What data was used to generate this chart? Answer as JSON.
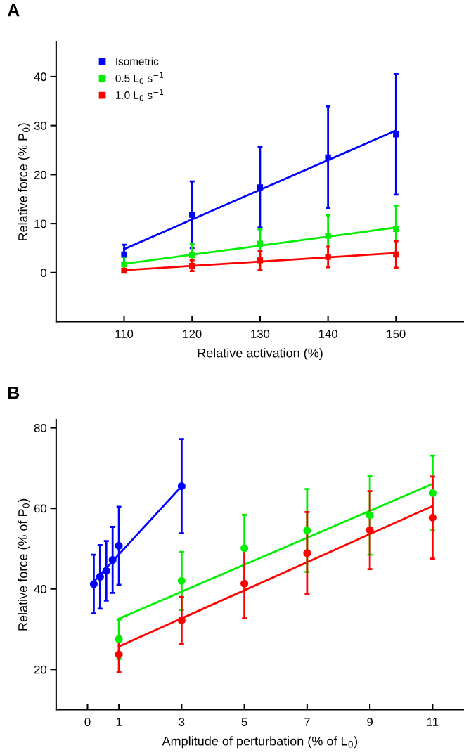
{
  "chart_data": [
    {
      "type": "scatter",
      "title": "A",
      "xlabel": "Relative activation (%)",
      "ylabel": "Relative force (% P$_{0}$)",
      "xlim": [
        100,
        160
      ],
      "ylim": [
        -10,
        47
      ],
      "xticks": [
        110,
        120,
        130,
        140,
        150
      ],
      "yticks": [
        0,
        10,
        20,
        30,
        40
      ],
      "legend": "top left",
      "marker": "square",
      "series": [
        {
          "name": "Isometric",
          "color": "#0000ff",
          "x": [
            110,
            120,
            130,
            140,
            150
          ],
          "values": [
            3.7,
            11.8,
            17.4,
            23.5,
            28.2
          ],
          "errors": [
            2.0,
            6.8,
            8.2,
            10.4,
            12.3
          ]
        },
        {
          "name": "0.5 L$_{0}$ s$^{−1}$",
          "color": "#00ee00",
          "x": [
            110,
            120,
            130,
            140,
            150
          ],
          "values": [
            1.7,
            3.6,
            5.9,
            7.5,
            8.9
          ],
          "errors": [
            1.5,
            2.2,
            2.9,
            4.2,
            4.8
          ]
        },
        {
          "name": "1.0 L$_{0}$ s$^{−1}$",
          "color": "#ff0000",
          "x": [
            110,
            120,
            130,
            140,
            150
          ],
          "values": [
            0.4,
            1.4,
            2.5,
            3.2,
            3.7
          ],
          "errors": [
            0.3,
            1.1,
            1.9,
            2.1,
            2.7
          ]
        },
        {
          "type": "line",
          "marker": "none",
          "color": "#0000ff",
          "x": [
            110,
            150
          ],
          "values": [
            4.8,
            29.0
          ]
        },
        {
          "type": "line",
          "marker": "none",
          "color": "#00ee00",
          "x": [
            110,
            150
          ],
          "values": [
            1.8,
            9.2
          ]
        },
        {
          "type": "line",
          "marker": "none",
          "color": "#ff0000",
          "x": [
            110,
            150
          ],
          "values": [
            0.5,
            4.0
          ]
        }
      ]
    },
    {
      "type": "scatter",
      "title": "B",
      "xlabel": "Amplitude of perturbation (% of L$_{0}$)",
      "ylabel": "Relative force (% of P$_{0}$)",
      "xlim": [
        -1,
        12
      ],
      "ylim": [
        10,
        82
      ],
      "xticks": [
        0,
        1,
        3,
        5,
        7,
        9,
        11
      ],
      "yticks": [
        20,
        40,
        60,
        80
      ],
      "marker": "circle",
      "series": [
        {
          "type": "line",
          "marker": "none",
          "color": "#0000ff",
          "x": [
            0.2,
            3
          ],
          "values": [
            41.8,
            65.5
          ]
        },
        {
          "type": "line",
          "marker": "none",
          "color": "#00ee00",
          "x": [
            1,
            11
          ],
          "values": [
            32.6,
            66.1
          ]
        },
        {
          "type": "line",
          "marker": "none",
          "color": "#ff0000",
          "x": [
            1,
            11
          ],
          "values": [
            25.7,
            60.6
          ]
        },
        {
          "color": "#0000ff",
          "x": [
            0.2,
            0.4,
            0.6,
            0.8,
            1,
            3
          ],
          "values": [
            41.2,
            43.0,
            44.5,
            47.2,
            50.7,
            65.5
          ],
          "errors": [
            7.3,
            7.9,
            7.4,
            8.2,
            9.7,
            11.7
          ]
        },
        {
          "color": "#00ee00",
          "x": [
            1,
            3,
            5,
            7,
            9,
            11
          ],
          "values": [
            27.5,
            42.0,
            50.1,
            54.5,
            58.3,
            63.8
          ],
          "errors": [
            4.9,
            7.2,
            8.3,
            10.3,
            9.8,
            9.3
          ]
        },
        {
          "color": "#ff0000",
          "x": [
            1,
            3,
            5,
            7,
            9,
            11
          ],
          "values": [
            23.7,
            32.2,
            41.3,
            48.9,
            54.6,
            57.7
          ],
          "errors": [
            4.4,
            5.8,
            8.6,
            10.2,
            9.7,
            10.2
          ]
        }
      ]
    }
  ]
}
